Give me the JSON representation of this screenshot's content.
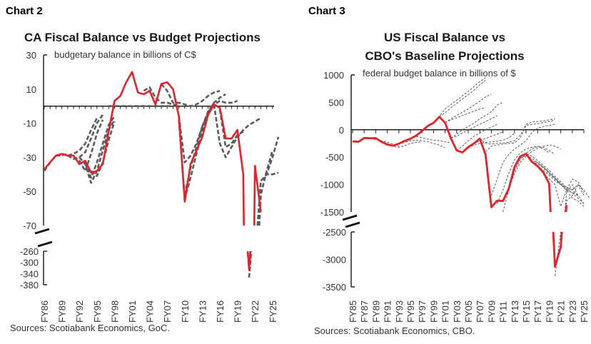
{
  "chart_data": [
    {
      "type": "line",
      "header": "Chart 2",
      "title": "CA Fiscal Balance vs Budget Projections",
      "ylabel": "budgetary balance in billions of C$",
      "source": "Sources: Scotiabank Economics, GoC.",
      "y_ticks_upper": [
        "30",
        "10",
        "-10",
        "-30",
        "-50",
        "-70"
      ],
      "y_ticks_lower": [
        "-260",
        "-300",
        "-340",
        "-380"
      ],
      "ylim_upper": [
        -70,
        30
      ],
      "ylim_lower": [
        -380,
        -260
      ],
      "axis_break": true,
      "x_tick_labels": [
        "FY86",
        "FY89",
        "FY92",
        "FY95",
        "FY98",
        "FY01",
        "FY04",
        "FY07",
        "FY10",
        "FY13",
        "FY16",
        "FY19",
        "FY22",
        "FY25"
      ],
      "colors": {
        "actual": "#e8202a",
        "projection": "#5a5a5a"
      },
      "actual": {
        "start_year": 1986,
        "values": [
          -37,
          -33,
          -29,
          -28,
          -29,
          -29,
          -34,
          -32,
          -39,
          -38,
          -34,
          -15,
          3,
          6,
          14,
          20,
          8,
          7,
          9,
          1,
          13,
          14,
          10,
          -6,
          -56,
          -34,
          -26,
          -18,
          -5,
          1,
          -1,
          -19,
          -19,
          -14,
          -40,
          -327,
          -35,
          -62
        ]
      },
      "projections": [
        {
          "start_year": 1986,
          "values": [
            -38,
            -33,
            -29,
            -29,
            -28
          ]
        },
        {
          "start_year": 1989,
          "values": [
            -28,
            -29,
            -28,
            -26,
            -22,
            -14,
            -7
          ]
        },
        {
          "start_year": 1990,
          "values": [
            -29,
            -31,
            -30,
            -27,
            -19,
            -10,
            -5
          ]
        },
        {
          "start_year": 1991,
          "values": [
            -30,
            -32,
            -38,
            -28,
            -16,
            -8
          ]
        },
        {
          "start_year": 1992,
          "values": [
            -30,
            -34,
            -45,
            -38,
            -26,
            -14,
            -8
          ]
        },
        {
          "start_year": 1993,
          "values": [
            -33,
            -42,
            -33,
            -22,
            -11,
            -6
          ]
        },
        {
          "start_year": 1994,
          "values": [
            -38,
            -41,
            -33,
            -20,
            -9
          ]
        },
        {
          "start_year": 1997,
          "values": [
            0,
            0,
            0,
            0,
            0,
            0,
            0,
            0,
            0,
            0,
            0,
            0
          ]
        },
        {
          "start_year": 2003,
          "values": [
            9,
            11,
            5,
            2,
            2,
            1,
            0
          ]
        },
        {
          "start_year": 2006,
          "values": [
            13,
            9,
            2,
            2,
            1,
            0,
            1,
            3,
            6,
            8,
            9
          ]
        },
        {
          "start_year": 2009,
          "values": [
            -6,
            -33,
            -29,
            -22,
            -12,
            -4,
            2
          ]
        },
        {
          "start_year": 2009,
          "values": [
            -8,
            -54,
            -42,
            -28,
            -15,
            -5,
            1,
            3,
            2,
            2,
            3
          ]
        },
        {
          "start_year": 2010,
          "values": [
            -52,
            -36,
            -24,
            -12,
            -3,
            2,
            5,
            7
          ]
        },
        {
          "start_year": 2015,
          "values": [
            1,
            -22,
            -30,
            -24,
            -18,
            -14,
            -11,
            -9,
            -7
          ]
        },
        {
          "start_year": 2016,
          "values": [
            -2,
            -24,
            -22,
            -17,
            -15
          ]
        },
        {
          "start_year": 2021,
          "values": [
            -354,
            -100,
            -44,
            -40,
            -30,
            -18
          ]
        },
        {
          "start_year": 2021,
          "values": [
            -300,
            -120,
            -52,
            -38,
            -26
          ]
        },
        {
          "start_year": 2022,
          "values": [
            -90,
            -44,
            -40,
            -40,
            -39
          ]
        }
      ]
    },
    {
      "type": "line",
      "header": "Chart 3",
      "title": [
        "US Fiscal Balance vs",
        "CBO's Baseline Projections"
      ],
      "ylabel": "federal budget balance in billions of $",
      "source": "Sources: Scotiabank Economics, CBO.",
      "y_ticks_upper": [
        "1000",
        "500",
        "0",
        "-500",
        "-1000",
        "-1500"
      ],
      "y_ticks_lower": [
        "-2500",
        "-3000",
        "-3500"
      ],
      "ylim_upper": [
        -1500,
        1000
      ],
      "ylim_lower": [
        -3500,
        -2500
      ],
      "axis_break": true,
      "x_tick_labels": [
        "FY85",
        "FY87",
        "FY89",
        "FY91",
        "FY93",
        "FY95",
        "FY97",
        "FY99",
        "FY01",
        "FY03",
        "FY05",
        "FY07",
        "FY09",
        "FY11",
        "FY13",
        "FY15",
        "FY17",
        "FY19",
        "FY21",
        "FY23",
        "FY25"
      ],
      "colors": {
        "actual": "#e8202a",
        "projection": "#5a5a5a"
      },
      "actual": {
        "start_year": 1985,
        "values": [
          -212,
          -221,
          -150,
          -155,
          -153,
          -221,
          -269,
          -290,
          -255,
          -203,
          -164,
          -107,
          -22,
          69,
          126,
          236,
          128,
          -158,
          -378,
          -413,
          -318,
          -248,
          -161,
          -459,
          -1413,
          -1294,
          -1300,
          -1077,
          -680,
          -485,
          -438,
          -585,
          -665,
          -779,
          -984,
          -3132,
          -2775,
          -1375
        ]
      },
      "projections": [
        {
          "start_year": 1988,
          "values": [
            -150,
            -180,
            -200,
            -230,
            -260,
            -300
          ]
        },
        {
          "start_year": 1991,
          "values": [
            -280,
            -300,
            -320,
            -290,
            -250,
            -230,
            -220
          ]
        },
        {
          "start_year": 1993,
          "values": [
            -260,
            -230,
            -200,
            -190,
            -200,
            -220,
            -250,
            -280,
            -330
          ]
        },
        {
          "start_year": 1996,
          "values": [
            -120,
            -150,
            -170,
            -190,
            -200,
            -220,
            -240
          ]
        },
        {
          "start_year": 1999,
          "values": [
            120,
            250,
            380,
            460,
            540,
            620,
            700,
            790,
            880,
            950
          ]
        },
        {
          "start_year": 2000,
          "values": [
            240,
            310,
            400,
            480,
            560,
            640,
            720,
            820,
            900
          ]
        },
        {
          "start_year": 2001,
          "values": [
            130,
            200,
            260,
            320,
            380,
            450,
            520,
            600,
            650
          ]
        },
        {
          "start_year": 2001,
          "values": [
            130,
            180,
            220,
            260,
            300,
            340,
            380,
            400
          ]
        },
        {
          "start_year": 2002,
          "values": [
            -150,
            -80,
            0,
            60,
            120,
            200,
            260,
            330,
            450,
            500
          ]
        },
        {
          "start_year": 2002,
          "values": [
            -150,
            -120,
            -60,
            0,
            50,
            100,
            150,
            200,
            260
          ]
        },
        {
          "start_year": 2003,
          "values": [
            -380,
            -300,
            -200,
            -120,
            -60,
            0,
            50,
            100
          ]
        },
        {
          "start_year": 2004,
          "values": [
            -420,
            -340,
            -260,
            -200,
            -160,
            -120,
            -80,
            -40
          ]
        },
        {
          "start_year": 2005,
          "values": [
            -320,
            -280,
            -250,
            -230,
            -220,
            -210,
            -190,
            -150,
            -60
          ]
        },
        {
          "start_year": 2007,
          "values": [
            -160,
            -250,
            -260,
            -250,
            -240,
            -230,
            -200,
            -100,
            100,
            140,
            150,
            160,
            180,
            200
          ]
        },
        {
          "start_year": 2008,
          "values": [
            -400,
            -300,
            -280,
            -260,
            -250,
            -240,
            -150,
            80,
            100,
            110,
            130,
            150,
            180
          ]
        },
        {
          "start_year": 2009,
          "values": [
            -1200,
            -900,
            -600,
            -450,
            -350,
            -280,
            -200,
            -50,
            30,
            60,
            80,
            100
          ]
        },
        {
          "start_year": 2010,
          "values": [
            -1350,
            -1100,
            -800,
            -550,
            -420,
            -350,
            -320,
            -300,
            -350,
            -420
          ]
        },
        {
          "start_year": 2011,
          "values": [
            -1500,
            -1100,
            -750,
            -550,
            -430,
            -350,
            -310,
            -320,
            -380,
            -450
          ]
        },
        {
          "start_year": 2012,
          "values": [
            -1080,
            -800,
            -600,
            -480,
            -400,
            -340,
            -300,
            -280,
            -300,
            -350
          ]
        },
        {
          "start_year": 2013,
          "values": [
            -700,
            -520,
            -470,
            -520,
            -600,
            -680,
            -780,
            -880,
            -1000,
            -1100,
            -1150,
            -1200
          ]
        },
        {
          "start_year": 2014,
          "values": [
            -500,
            -440,
            -480,
            -560,
            -650,
            -740,
            -850,
            -950,
            -1050,
            -1100,
            -1200
          ]
        },
        {
          "start_year": 2015,
          "values": [
            -440,
            -560,
            -600,
            -680,
            -780,
            -880,
            -980,
            -1080,
            -1150,
            -1250,
            -1350
          ]
        },
        {
          "start_year": 2016,
          "values": [
            -580,
            -620,
            -700,
            -800,
            -900,
            -1000,
            -1100,
            -900,
            -950,
            -1150
          ]
        },
        {
          "start_year": 2017,
          "values": [
            -660,
            -740,
            -830,
            -930,
            -1000,
            -1050,
            -1100,
            -1000,
            -1200
          ]
        },
        {
          "start_year": 2018,
          "values": [
            -800,
            -900,
            -1000,
            -1400,
            -1100,
            -1250,
            -1300,
            -1400
          ]
        },
        {
          "start_year": 2020,
          "values": [
            -3300,
            -2500,
            -1300,
            -1200,
            -1000,
            -1100,
            -1250
          ]
        },
        {
          "start_year": 2021,
          "values": [
            -2300,
            -1150,
            -1000,
            -1200,
            -1350
          ]
        }
      ]
    }
  ]
}
